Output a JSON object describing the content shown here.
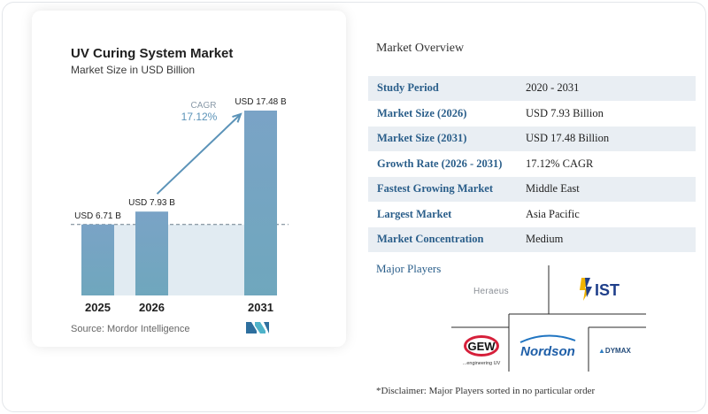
{
  "chart_data": {
    "type": "bar",
    "title": "UV Curing System Market",
    "subtitle": "Market Size in USD Billion",
    "categories": [
      "2025",
      "2026",
      "2031"
    ],
    "values": [
      6.71,
      7.93,
      17.48
    ],
    "data_labels": [
      "USD 6.71 B",
      "USD 7.93 B",
      "USD 17.48 B"
    ],
    "annotation": {
      "label": "CAGR",
      "value": "17.12%"
    },
    "ylim": [
      0,
      17.48
    ],
    "colors": {
      "bar_top": "#7aa3c6",
      "bar_bottom": "#6fa7bd",
      "accent": "#5b93b8",
      "band": "#d9e6ef"
    }
  },
  "source": "Source: Mordor Intelligence",
  "overview": {
    "title": "Market Overview",
    "rows": [
      {
        "key": "Study Period",
        "value": "2020 - 2031"
      },
      {
        "key": "Market Size (2026)",
        "value": "USD 7.93 Billion"
      },
      {
        "key": "Market Size (2031)",
        "value": "USD 17.48 Billion"
      },
      {
        "key": "Growth Rate (2026 - 2031)",
        "value": "17.12% CAGR"
      },
      {
        "key": "Fastest Growing Market",
        "value": "Middle East"
      },
      {
        "key": "Largest Market",
        "value": "Asia Pacific"
      },
      {
        "key": "Market Concentration",
        "value": "Medium"
      }
    ]
  },
  "players": {
    "title": "Major Players",
    "logos": {
      "heraeus": "Heraeus",
      "ist": "IST",
      "gew_name": "GEW",
      "gew_tagline": "...engineering UV",
      "nordson": "Nordson",
      "dymax": "DYMAX"
    }
  },
  "disclaimer": "*Disclaimer: Major Players sorted in no particular order"
}
